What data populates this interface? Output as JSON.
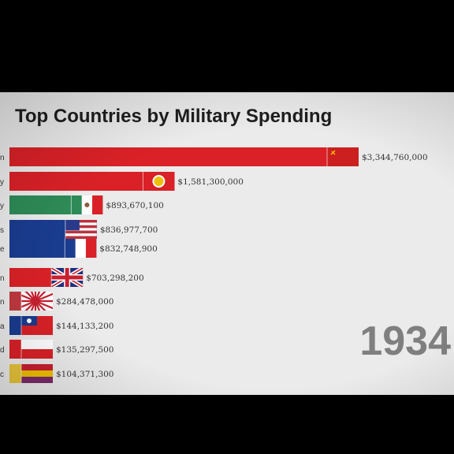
{
  "chart_data": {
    "type": "bar",
    "orientation": "horizontal",
    "title": "Top Countries by Military Spending",
    "period": "1934",
    "xlim": [
      0,
      3344760000
    ],
    "bars": [
      {
        "label_tail": "n",
        "value": 3344760000,
        "value_label": "$3,344,760,000",
        "flag": "soviet-union",
        "color": "#d92127"
      },
      {
        "label_tail": "y",
        "value": 1581300000,
        "value_label": "$1,581,300,000",
        "flag": "germany",
        "color": "#d92127"
      },
      {
        "label_tail": "y",
        "value": 893670100,
        "value_label": "$893,670,100",
        "flag": "italy",
        "color": "#2e8b57"
      },
      {
        "label_tail": "s",
        "value": 836977700,
        "value_label": "$836,977,700",
        "flag": "united-states",
        "color": "#1a3c8f"
      },
      {
        "label_tail": "e",
        "value": 832748900,
        "value_label": "$832,748,900",
        "flag": "france",
        "color": "#1a3c8f"
      },
      {
        "label_tail": "n",
        "value": 703298200,
        "value_label": "$703,298,200",
        "flag": "united-kingdom",
        "color": "#d92127"
      },
      {
        "label_tail": "n",
        "value": 284478000,
        "value_label": "$284,478,000",
        "flag": "japan",
        "color": "#c0393e"
      },
      {
        "label_tail": "a",
        "value": 144133200,
        "value_label": "$144,133,200",
        "flag": "china",
        "color": "#1a3c8f"
      },
      {
        "label_tail": "d",
        "value": 135297500,
        "value_label": "$135,297,500",
        "flag": "poland",
        "color": "#d92127"
      },
      {
        "label_tail": "c",
        "value": 104371300,
        "value_label": "$104,371,300",
        "flag": "spain",
        "color": "#e8c53a"
      }
    ]
  }
}
